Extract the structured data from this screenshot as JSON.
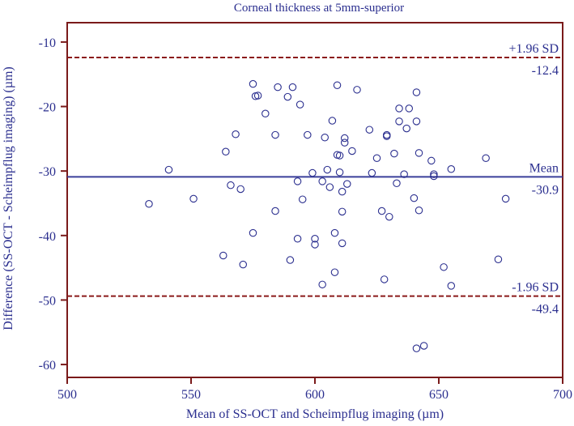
{
  "chart_data": {
    "type": "scatter",
    "title": "Corneal thickness at 5mm-superior",
    "xlabel": "Mean of SS-OCT and Scheimpflug imaging (µm)",
    "ylabel": "Difference (SS-OCT - Scheimpflug imaging) (µm)",
    "xlim": [
      500,
      700
    ],
    "ylim": [
      -62,
      -7
    ],
    "x_ticks": [
      500,
      550,
      600,
      650,
      700
    ],
    "y_ticks": [
      -60,
      -50,
      -40,
      -30,
      -20,
      -10
    ],
    "grid": false,
    "colors": {
      "axis": "#7a1a1a",
      "text": "#2b2f8f",
      "points": "#2b2f8f",
      "mean_line": "#3a3f9a",
      "sd_lines": "#8b1a1a"
    },
    "reference_lines": [
      {
        "label": "+1.96 SD",
        "value_label": "-12.4",
        "y": -12.4,
        "style": "dashed"
      },
      {
        "label": "Mean",
        "value_label": "-30.9",
        "y": -30.9,
        "style": "solid"
      },
      {
        "label": "-1.96 SD",
        "value_label": "-49.4",
        "y": -49.4,
        "style": "dashed"
      }
    ],
    "points": [
      [
        533,
        -35.1
      ],
      [
        541,
        -29.8
      ],
      [
        551,
        -34.3
      ],
      [
        563,
        -43.1
      ],
      [
        564,
        -27.0
      ],
      [
        566,
        -32.2
      ],
      [
        568,
        -24.3
      ],
      [
        570,
        -32.8
      ],
      [
        571,
        -44.5
      ],
      [
        575,
        -16.5
      ],
      [
        575,
        -39.6
      ],
      [
        576,
        -18.4
      ],
      [
        577,
        -18.3
      ],
      [
        580,
        -21.1
      ],
      [
        584,
        -24.4
      ],
      [
        584,
        -36.2
      ],
      [
        585,
        -17.0
      ],
      [
        589,
        -18.5
      ],
      [
        590,
        -43.8
      ],
      [
        591,
        -17.0
      ],
      [
        593,
        -31.6
      ],
      [
        593,
        -40.5
      ],
      [
        594,
        -19.7
      ],
      [
        595,
        -34.4
      ],
      [
        597,
        -24.4
      ],
      [
        599,
        -30.3
      ],
      [
        600,
        -40.5
      ],
      [
        600,
        -41.4
      ],
      [
        603,
        -31.6
      ],
      [
        603,
        -47.6
      ],
      [
        604,
        -24.8
      ],
      [
        605,
        -29.8
      ],
      [
        606,
        -32.5
      ],
      [
        607,
        -22.2
      ],
      [
        608,
        -39.6
      ],
      [
        608,
        -45.7
      ],
      [
        609,
        -27.5
      ],
      [
        609,
        -16.7
      ],
      [
        610,
        -30.2
      ],
      [
        610,
        -27.6
      ],
      [
        611,
        -33.2
      ],
      [
        611,
        -36.3
      ],
      [
        611,
        -41.2
      ],
      [
        612,
        -25.6
      ],
      [
        612,
        -24.9
      ],
      [
        613,
        -32.0
      ],
      [
        615,
        -26.9
      ],
      [
        617,
        -17.4
      ],
      [
        622,
        -23.6
      ],
      [
        623,
        -30.3
      ],
      [
        625,
        -28.0
      ],
      [
        627,
        -36.2
      ],
      [
        628,
        -46.8
      ],
      [
        629,
        -24.4
      ],
      [
        629,
        -24.6
      ],
      [
        630,
        -37.1
      ],
      [
        632,
        -27.3
      ],
      [
        633,
        -31.9
      ],
      [
        634,
        -20.3
      ],
      [
        634,
        -22.3
      ],
      [
        636,
        -30.5
      ],
      [
        637,
        -23.4
      ],
      [
        638,
        -20.3
      ],
      [
        640,
        -34.2
      ],
      [
        641,
        -22.3
      ],
      [
        641,
        -17.8
      ],
      [
        641,
        -57.5
      ],
      [
        642,
        -27.2
      ],
      [
        642,
        -36.1
      ],
      [
        644,
        -57.1
      ],
      [
        647,
        -28.4
      ],
      [
        648,
        -30.5
      ],
      [
        648,
        -30.8
      ],
      [
        652,
        -44.9
      ],
      [
        655,
        -29.7
      ],
      [
        655,
        -47.8
      ],
      [
        669,
        -28.0
      ],
      [
        674,
        -43.7
      ],
      [
        677,
        -34.3
      ]
    ]
  }
}
